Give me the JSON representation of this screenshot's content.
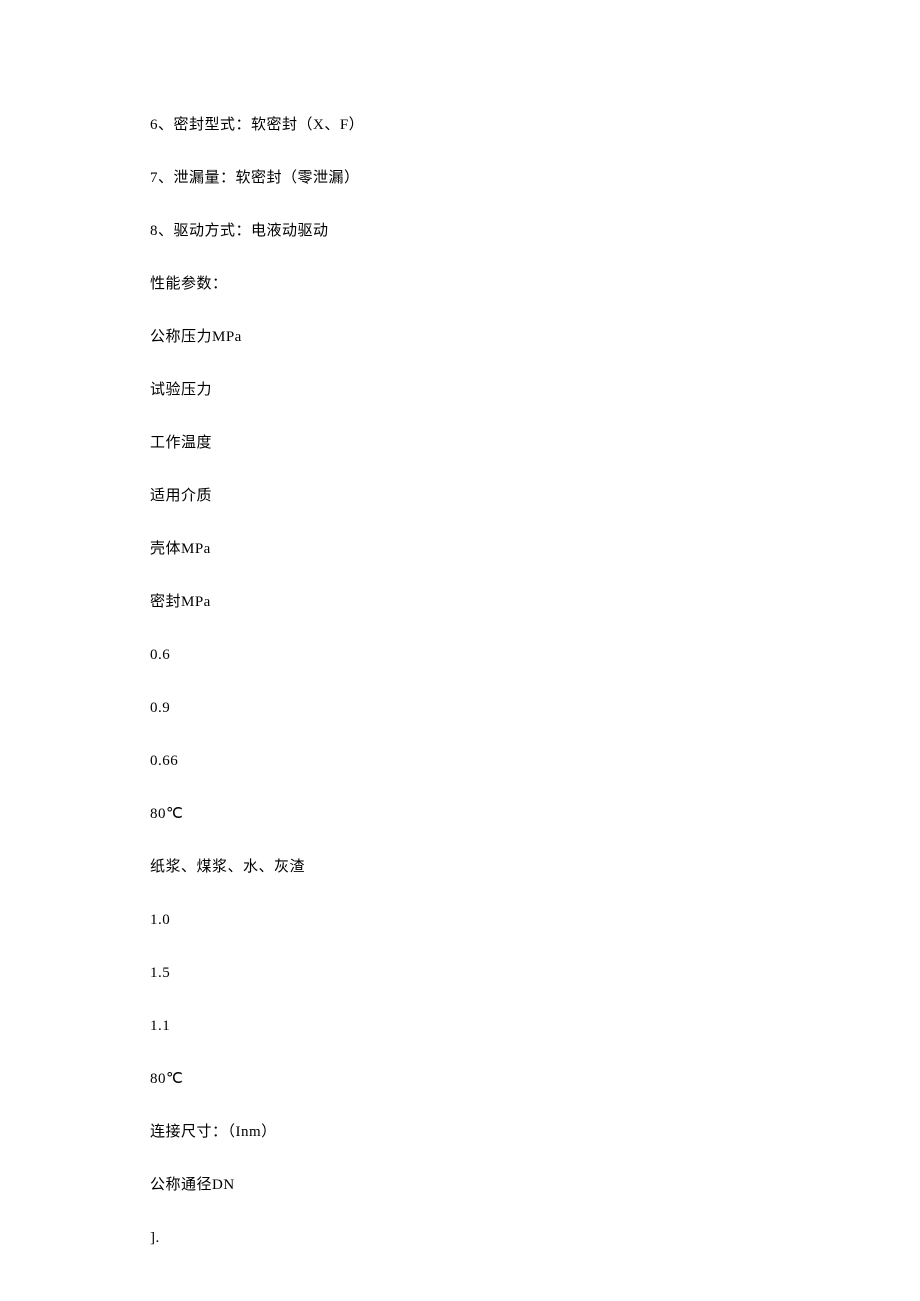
{
  "document": {
    "font_family": "SimSun",
    "font_size": 15,
    "text_color": "#000000",
    "background_color": "#ffffff",
    "line_spacing": 32,
    "lines": [
      "6、密封型式：软密封（X、F）",
      "7、泄漏量：软密封（零泄漏）",
      "8、驱动方式：电液动驱动",
      "性能参数：",
      "公称压力MPa",
      "试验压力",
      "工作温度",
      "适用介质",
      "壳体MPa",
      "密封MPa",
      "0.6",
      "0.9",
      "0.66",
      "80℃",
      "纸浆、煤浆、水、灰渣",
      "1.0",
      "1.5",
      "1.1",
      "80℃",
      "连接尺寸：（Inm）",
      "公称通径DN",
      "]."
    ]
  }
}
